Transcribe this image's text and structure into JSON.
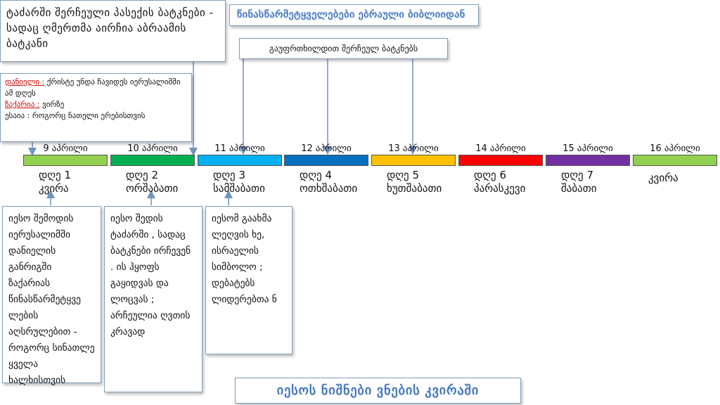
{
  "temple_box": {
    "text": "ტაძარში შერჩეული პასექის ბატკნები - სადაც ღმერთმა აირჩია აბრაამის ბატკანი"
  },
  "prophecy": {
    "daniel_name": "დანიელი :",
    "daniel_text": " ქრისტე უნდა ჩავიდეს იერუსალიმში ამ დღეს",
    "zechariah_name": "ზაქარია :",
    "zechariah_text": " ვირზე",
    "isaiah_text": "ესაია : როგორც ნათელი ერებისთვის"
  },
  "title": "წინასწარმეტყველებები ებრაული ბიბლიიდან",
  "verify_box": "გაუფრთხილდით შერჩეულ ბატკნებს",
  "days": [
    {
      "date": "9 აპრილი",
      "label1": "დღე 1",
      "label2": "კვირა",
      "color": "#92d050"
    },
    {
      "date": "10 აპრილი",
      "label1": "დღე 2",
      "label2": "ორშაბათი",
      "color": "#00b050"
    },
    {
      "date": "11 აპრილი",
      "label1": "დღე 3",
      "label2": "სამშაბათი",
      "color": "#00b0f0"
    },
    {
      "date": "12 აპრილი",
      "label1": "დღე 4",
      "label2": "ოთხშაბათი",
      "color": "#0070c0"
    },
    {
      "date": "13 აპრილი",
      "label1": "დღე 5",
      "label2": "ხუთშაბათი",
      "color": "#ffc000"
    },
    {
      "date": "14 აპრილი",
      "label1": "დღე 6",
      "label2": "პარასკევი",
      "color": "#ff0000"
    },
    {
      "date": "15 აპრილი",
      "label1": "დღე 7",
      "label2": "შაბათი",
      "color": "#7030a0"
    },
    {
      "date": "16 აპრილი",
      "label1": "",
      "label2": "კვირა",
      "color": "#92d050"
    }
  ],
  "desc": {
    "day1": "იესო შემოდის იერუსალიმში დანიელის განრიგში ზაქარიას წინასწარმეტყვე ლების აღსრულებით - როგორც სინათლე ყველა ხალხისთვის",
    "day2": "იესო შედის ტაძარში , სადაც ბატკნები ირჩევენ . ის ჰყოფს გაყიდვას და ლოცვას ; არჩეულია ღვთის კრავად",
    "day3": "იესომ გაახმა ლეღვის ხე, ისრაელის სიმბოლო ; დებატებს ლიდერებთა ნ"
  },
  "bottom_title": "იესოს ნიშნები ვნების კვირაში"
}
